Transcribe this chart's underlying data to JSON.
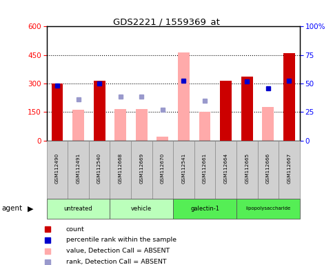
{
  "title": "GDS2221 / 1559369_at",
  "samples": [
    "GSM112490",
    "GSM112491",
    "GSM112540",
    "GSM112668",
    "GSM112669",
    "GSM112670",
    "GSM112541",
    "GSM112661",
    "GSM112664",
    "GSM112665",
    "GSM112666",
    "GSM112667"
  ],
  "group_defs": [
    {
      "name": "untreated",
      "start": 0,
      "end": 2,
      "color": "#bbffbb"
    },
    {
      "name": "vehicle",
      "start": 3,
      "end": 5,
      "color": "#bbffbb"
    },
    {
      "name": "galectin-1",
      "start": 6,
      "end": 8,
      "color": "#55ee55"
    },
    {
      "name": "lipopolysaccharide",
      "start": 9,
      "end": 11,
      "color": "#55ee55"
    }
  ],
  "red_bars": [
    300,
    null,
    315,
    null,
    null,
    null,
    null,
    null,
    315,
    335,
    null,
    460
  ],
  "pink_bars": [
    null,
    160,
    null,
    165,
    165,
    20,
    465,
    150,
    null,
    null,
    175,
    null
  ],
  "blue_squares": [
    290,
    null,
    300,
    null,
    null,
    null,
    315,
    null,
    null,
    310,
    275,
    315
  ],
  "lavender_squares": [
    null,
    215,
    null,
    230,
    230,
    160,
    null,
    210,
    null,
    null,
    null,
    null
  ],
  "ylim_left": [
    0,
    600
  ],
  "ylim_right": [
    0,
    100
  ],
  "yticks_left": [
    0,
    150,
    300,
    450,
    600
  ],
  "yticks_right": [
    0,
    25,
    50,
    75,
    100
  ],
  "ytick_right_labels": [
    "0",
    "25",
    "50",
    "75",
    "100%"
  ],
  "bar_width": 0.55,
  "red_color": "#cc0000",
  "pink_color": "#ffaaaa",
  "blue_color": "#0000cc",
  "lavender_color": "#9999cc",
  "legend_items": [
    {
      "label": "count",
      "color": "#cc0000"
    },
    {
      "label": "percentile rank within the sample",
      "color": "#0000cc"
    },
    {
      "label": "value, Detection Call = ABSENT",
      "color": "#ffaaaa"
    },
    {
      "label": "rank, Detection Call = ABSENT",
      "color": "#9999cc"
    }
  ]
}
